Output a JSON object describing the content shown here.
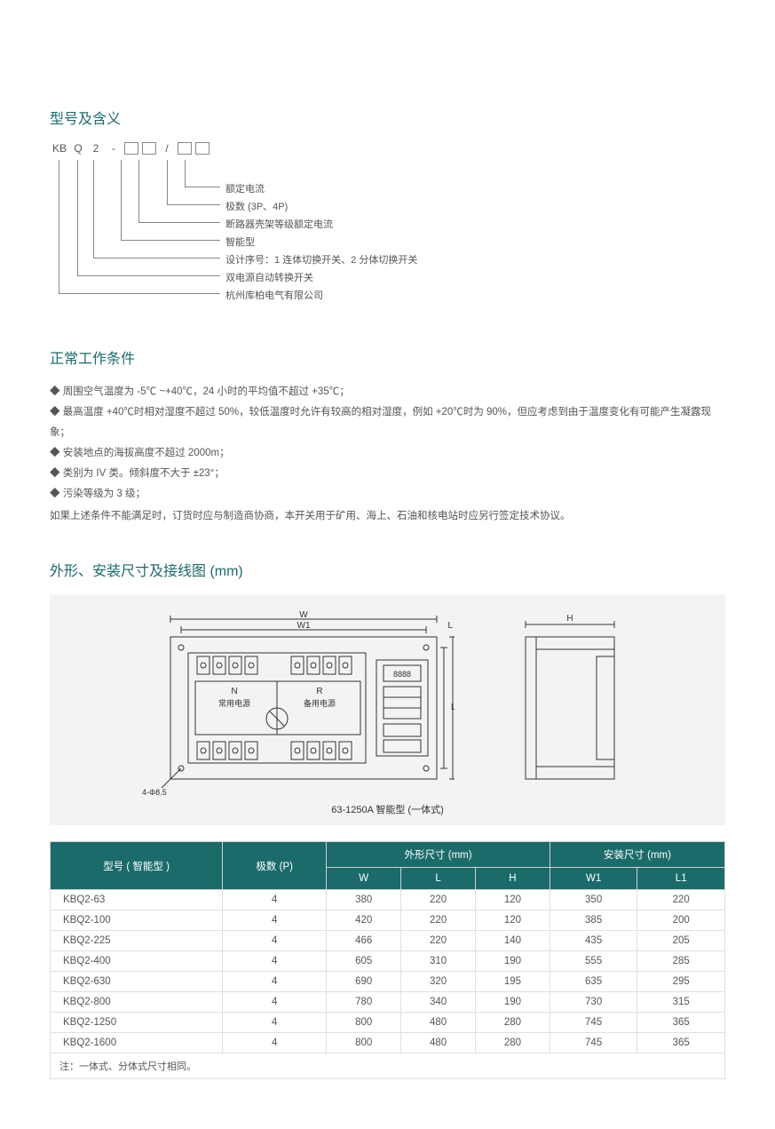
{
  "section1": {
    "title": "型号及含义",
    "code_parts": [
      "KB",
      "Q",
      "2",
      "-",
      "□",
      "□",
      "/",
      "□",
      "□"
    ],
    "legend": [
      "额定电流",
      "极数 (3P、4P)",
      "断路器壳架等级额定电流",
      "智能型",
      "设计序号：1 连体切换开关、2 分体切换开关",
      "双电源自动转换开关",
      "杭州库柏电气有限公司"
    ]
  },
  "section2": {
    "title": "正常工作条件",
    "items": [
      "周围空气温度为 -5℃ ~+40℃，24 小时的平均值不超过 +35℃；",
      "最高温度 +40℃时相对湿度不超过 50%，较低温度时允许有较高的相对湿度，例如 +20℃时为 90%，但应考虑到由于温度变化有可能产生凝露现象；",
      "安装地点的海拔高度不超过 2000m；",
      "类别为 IV 类。倾斜度不大于 ±23°；",
      "污染等级为 3 级；"
    ],
    "note": "如果上述条件不能满足时，订货时应与制造商协商，本开关用于矿用、海上、石油和核电站时应另行签定技术协议。"
  },
  "section3": {
    "title": "外形、安装尺寸及接线图 (mm)",
    "diagram": {
      "labels": {
        "W": "W",
        "W1": "W1",
        "L": "L",
        "L1": "L1",
        "H": "H",
        "N_label": "N",
        "N_text": "常用电源",
        "R_label": "R",
        "R_text": "备用电源",
        "hole": "4-Φ8.5",
        "caption": "63-1250A 智能型 (一体式)"
      }
    },
    "table": {
      "headers": {
        "model": "型号 ( 智能型 )",
        "poles": "极数 (P)",
        "outer": "外形尺寸 (mm)",
        "mount": "安装尺寸 (mm)",
        "W": "W",
        "L": "L",
        "H": "H",
        "W1": "W1",
        "L1": "L1"
      },
      "rows": [
        {
          "model": "KBQ2-63",
          "p": "4",
          "W": "380",
          "L": "220",
          "H": "120",
          "W1": "350",
          "L1": "220"
        },
        {
          "model": "KBQ2-100",
          "p": "4",
          "W": "420",
          "L": "220",
          "H": "120",
          "W1": "385",
          "L1": "200"
        },
        {
          "model": "KBQ2-225",
          "p": "4",
          "W": "466",
          "L": "220",
          "H": "140",
          "W1": "435",
          "L1": "205"
        },
        {
          "model": "KBQ2-400",
          "p": "4",
          "W": "605",
          "L": "310",
          "H": "190",
          "W1": "555",
          "L1": "285"
        },
        {
          "model": "KBQ2-630",
          "p": "4",
          "W": "690",
          "L": "320",
          "H": "195",
          "W1": "635",
          "L1": "295"
        },
        {
          "model": "KBQ2-800",
          "p": "4",
          "W": "780",
          "L": "340",
          "H": "190",
          "W1": "730",
          "L1": "315"
        },
        {
          "model": "KBQ2-1250",
          "p": "4",
          "W": "800",
          "L": "480",
          "H": "280",
          "W1": "745",
          "L1": "365"
        },
        {
          "model": "KBQ2-1600",
          "p": "4",
          "W": "800",
          "L": "480",
          "H": "280",
          "W1": "745",
          "L1": "365"
        }
      ],
      "note": "注：一体式、分体式尺寸相同。"
    }
  },
  "colors": {
    "accent": "#1c6b6b",
    "text": "#5a5a5a",
    "line": "#888888",
    "tbl_header_bg": "#1c6b6b",
    "tbl_border": "#e0e0e0",
    "figure_bg": "#f2f4f4"
  }
}
